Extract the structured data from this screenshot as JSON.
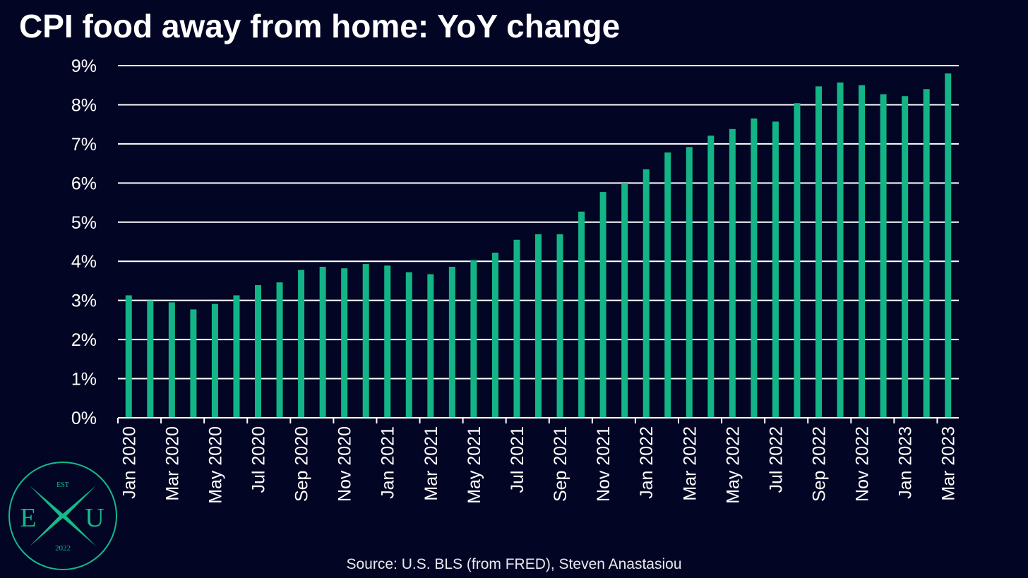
{
  "title": "CPI food away from home: YoY change",
  "source": "Source: U.S. BLS (from FRED), Steven Anastasiou",
  "logo": {
    "top": "EST",
    "left": "E",
    "right": "U",
    "bottom": "2022"
  },
  "colors": {
    "background": "#020524",
    "bar": "#13b587",
    "grid": "#ffffff",
    "logo": "#15b98a"
  },
  "chart_data": {
    "type": "bar",
    "categories": [
      "Jan 2020",
      "Feb 2020",
      "Mar 2020",
      "Apr 2020",
      "May 2020",
      "Jun 2020",
      "Jul 2020",
      "Aug 2020",
      "Sep 2020",
      "Oct 2020",
      "Nov 2020",
      "Dec 2020",
      "Jan 2021",
      "Feb 2021",
      "Mar 2021",
      "Apr 2021",
      "May 2021",
      "Jun 2021",
      "Jul 2021",
      "Aug 2021",
      "Sep 2021",
      "Oct 2021",
      "Nov 2021",
      "Dec 2021",
      "Jan 2022",
      "Feb 2022",
      "Mar 2022",
      "Apr 2022",
      "May 2022",
      "Jun 2022",
      "Jul 2022",
      "Aug 2022",
      "Sep 2022",
      "Oct 2022",
      "Nov 2022",
      "Dec 2022",
      "Jan 2023",
      "Feb 2023",
      "Mar 2023"
    ],
    "tick_labels": [
      "Jan 2020",
      "Mar 2020",
      "May 2020",
      "Jul 2020",
      "Sep 2020",
      "Nov 2020",
      "Jan 2021",
      "Mar 2021",
      "May 2021",
      "Jul 2021",
      "Sep 2021",
      "Nov 2021",
      "Jan 2022",
      "Mar 2022",
      "May 2022",
      "Jul 2022",
      "Sep 2022",
      "Nov 2022",
      "Jan 2023",
      "Mar 2023"
    ],
    "values": [
      3.13,
      3.0,
      2.95,
      2.77,
      2.91,
      3.13,
      3.39,
      3.46,
      3.78,
      3.86,
      3.82,
      3.93,
      3.89,
      3.72,
      3.67,
      3.86,
      4.03,
      4.22,
      4.55,
      4.69,
      4.69,
      5.27,
      5.77,
      6.0,
      6.35,
      6.78,
      6.92,
      7.21,
      7.38,
      7.65,
      7.57,
      8.04,
      8.47,
      8.57,
      8.5,
      8.27,
      8.22,
      8.4,
      8.8
    ],
    "ylim": [
      0,
      9
    ],
    "yticks": [
      0,
      1,
      2,
      3,
      4,
      5,
      6,
      7,
      8,
      9
    ],
    "ytick_labels": [
      "0%",
      "1%",
      "2%",
      "3%",
      "4%",
      "5%",
      "6%",
      "7%",
      "8%",
      "9%"
    ],
    "xlabel": "",
    "ylabel": "",
    "grid": true
  }
}
